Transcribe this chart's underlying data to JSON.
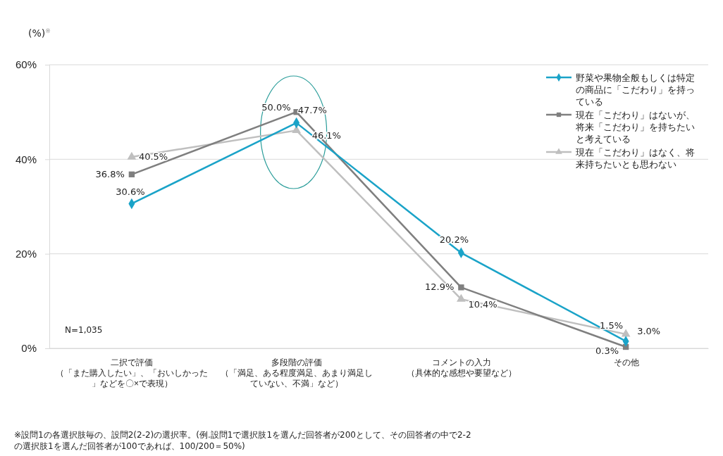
{
  "chart_data": {
    "type": "line",
    "ylabel": "(%)$^{※}$",
    "categories": [
      "二択で評価（「また購入したい」、「おいしかった」などを〇×で表現）",
      "多段階の評価（「満足、ある程度満足、あまり満足していない、不満」など）",
      "コメントの入力（具体的な感想や要望など）",
      "その他"
    ],
    "series": [
      {
        "name": "野菜や果物全般もしくは特定の商品に「こだわり」を持っている",
        "color": "#1aa3c8",
        "marker": "diamond",
        "values": [
          30.6,
          47.7,
          20.2,
          1.5
        ]
      },
      {
        "name": "現在「こだわり」はないが、将来「こだわり」を持ちたいと考えている",
        "color": "#7f7f7f",
        "marker": "square",
        "values": [
          36.8,
          50.0,
          12.9,
          0.3
        ]
      },
      {
        "name": "現在「こだわり」はなく、将来持ちたいとも思わない",
        "color": "#bfbfbf",
        "marker": "triangle",
        "values": [
          40.5,
          46.1,
          10.4,
          3.0
        ]
      }
    ],
    "ylim": [
      0,
      60
    ],
    "yticks": [
      {
        "value": 0,
        "label": "0%"
      },
      {
        "value": 20,
        "label": "20%"
      },
      {
        "value": 40,
        "label": "40%"
      },
      {
        "value": 60,
        "label": "60%"
      }
    ],
    "grid": "y",
    "legend": "top right",
    "line_style": "solid",
    "value_labels": [
      [
        "30.6%",
        "47.7%",
        "20.2%",
        "1.5%"
      ],
      [
        "36.8%",
        "50.0%",
        "12.9%",
        "0.3%"
      ],
      [
        "40.5%",
        "46.1%",
        "10.4%",
        "3.0%"
      ]
    ],
    "annotations": [
      "N=1,035",
      "※設問1の各選択肢毎の、設問2(2-2)の選択率。(例.設問1で選択肢1を選んだ回答者が200として、その回答者の中で2-2\nの選択肢1を選んだ回答者が100であれば、100/200＝50%)"
    ]
  }
}
